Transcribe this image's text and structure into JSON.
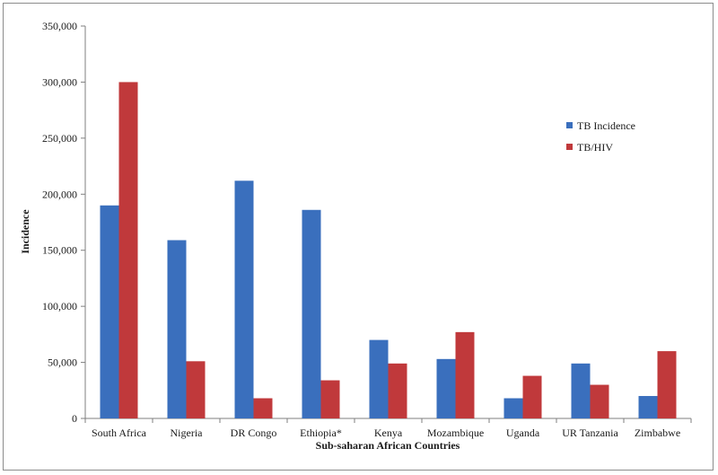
{
  "chart_data": {
    "type": "bar",
    "title": "",
    "xlabel": "Sub-saharan African Countries",
    "ylabel": "Incidence",
    "ylim": [
      0,
      350000
    ],
    "yticks": [
      0,
      50000,
      100000,
      150000,
      200000,
      250000,
      300000,
      350000
    ],
    "ytick_labels": [
      "0",
      "50,000",
      "100,000",
      "150,000",
      "200,000",
      "250,000",
      "300,000",
      "350,000"
    ],
    "categories": [
      "South Africa",
      "Nigeria",
      "DR Congo",
      "Ethiopia*",
      "Kenya",
      "Mozambique",
      "Uganda",
      "UR Tanzania",
      "Zimbabwe"
    ],
    "series": [
      {
        "name": "TB Incidence",
        "color": "#3a6fbd",
        "values": [
          190000,
          159000,
          212000,
          186000,
          70000,
          53000,
          18000,
          49000,
          20000
        ]
      },
      {
        "name": "TB/HIV",
        "color": "#c0393b",
        "values": [
          300000,
          51000,
          18000,
          34000,
          49000,
          77000,
          38000,
          30000,
          60000
        ]
      }
    ],
    "grid": false,
    "legend_position": "right"
  }
}
